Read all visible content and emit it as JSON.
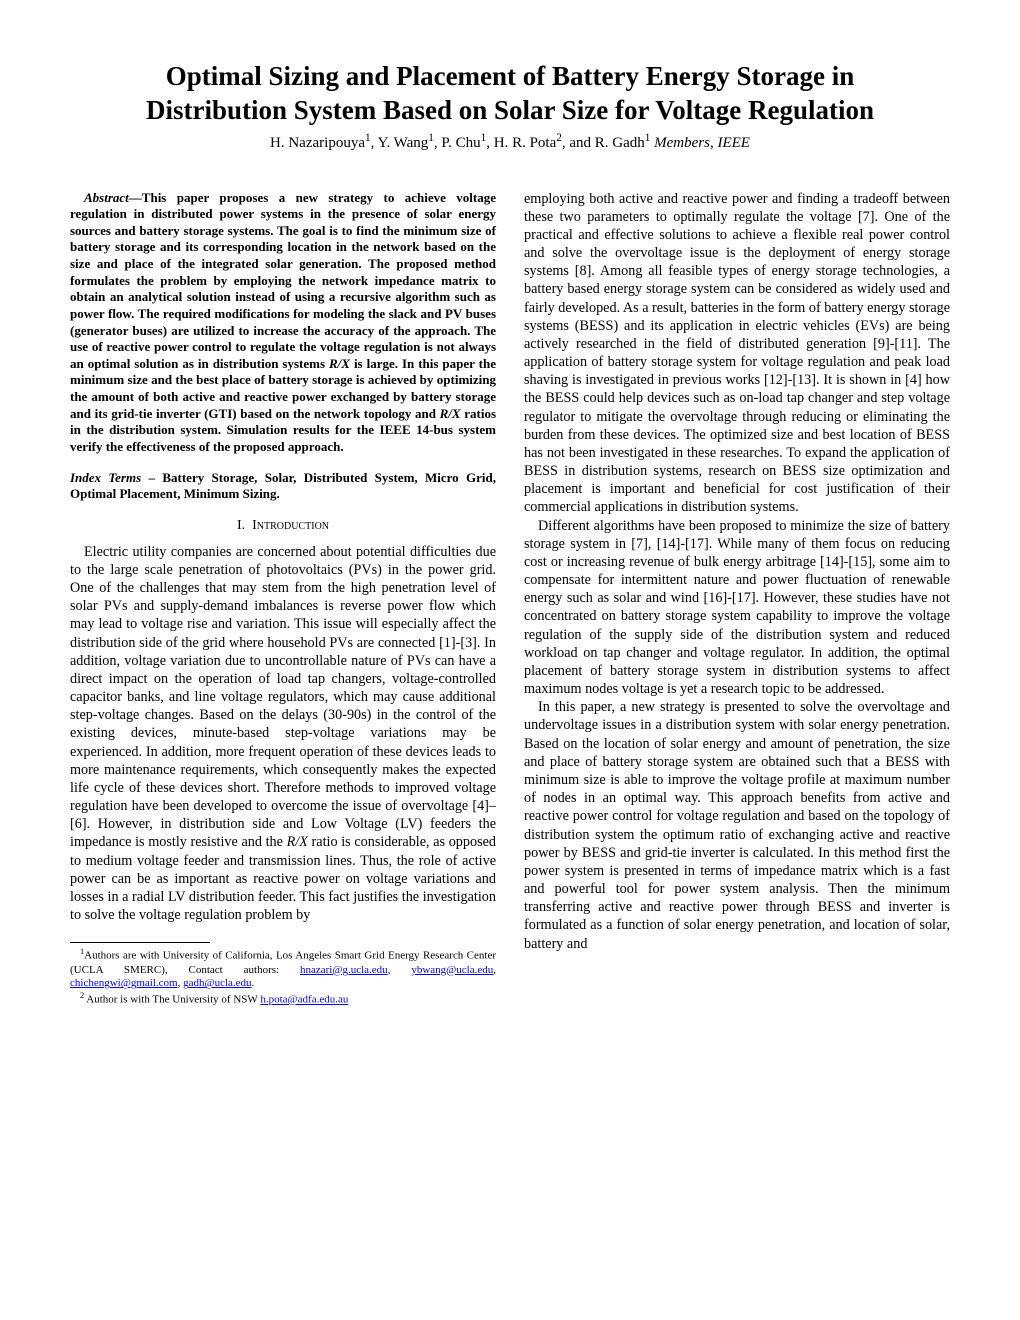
{
  "title_line1": "Optimal Sizing and Placement of Battery Energy Storage in",
  "title_line2": "Distribution System Based on Solar Size for Voltage Regulation",
  "authors_html": "H. Nazaripouya<sup>1</sup>, Y. Wang<sup>1</sup>, P. Chu<sup>1</sup>, H. R. Pota<sup>2</sup>, and R. Gadh<sup>1</sup> <span class=\"ital\">Members, IEEE</span>",
  "abstract_label": "Abstract",
  "abstract_text": "—This paper proposes a new strategy to achieve voltage regulation in distributed power systems in the presence of solar energy sources and battery storage systems. The goal is to find the minimum size of battery storage and its corresponding location in the network based on the size and place of the integrated solar generation. The proposed method formulates the problem by employing the network impedance matrix to obtain an analytical solution instead of using a recursive algorithm such as power flow. The required modifications for modeling the slack and PV buses (generator buses) are utilized to increase the accuracy of the approach. The use of reactive power control to regulate the voltage regulation is not always an optimal solution as in distribution systems <span class=\"ital\">R/X</span> is large. In this paper the minimum size and the best place of battery storage is achieved by optimizing the amount of both active and reactive power exchanged by battery storage and its grid-tie inverter (GTI) based on the network topology and <span class=\"ital\">R/X</span> ratios in the distribution system. Simulation results for the IEEE 14-bus system verify the effectiveness of the proposed approach.",
  "index_terms_label": "Index Terms",
  "index_terms_text": " – Battery Storage, Solar, Distributed System, Micro Grid, Optimal Placement, Minimum Sizing.",
  "section_num": "I.",
  "section_title": "Introduction",
  "left_para": "Electric utility companies are concerned about potential difficulties due to the large scale penetration of photovoltaics (PVs) in the power grid. One of the challenges that may stem from the high penetration level of solar PVs and supply-demand imbalances is reverse power flow which may lead to voltage rise and variation. This issue will especially affect the distribution side of the grid where household PVs are connected [1]-[3]. In addition, voltage variation due to uncontrollable nature of PVs can have a direct impact on the operation of load tap changers, voltage-controlled capacitor banks, and line voltage regulators, which may cause additional step-voltage changes. Based on the delays (30-90s) in the control of the existing devices, minute-based step-voltage variations may be experienced. In addition, more frequent operation of these devices leads to more maintenance requirements, which consequently makes the expected life cycle of these devices short.  Therefore methods to improved voltage regulation have been developed to overcome the issue of overvoltage [4]–[6]. However, in distribution side and Low Voltage (LV) feeders the impedance is mostly resistive and the <span class=\"ital\">R/X</span> ratio is considerable, as opposed to medium voltage feeder and transmission lines. Thus, the role of active power can be as important as reactive power on voltage variations and losses in a radial LV distribution feeder. This fact justifies the investigation to solve the voltage regulation problem by",
  "right_para1": "employing both active and reactive power and finding a tradeoff between these two parameters to optimally regulate the voltage [7]. One of the practical and effective solutions to achieve a flexible real power control and solve the overvoltage issue is the deployment of energy storage systems [8]. Among all feasible types of energy storage technologies, a battery based energy storage system can be considered as widely used and fairly developed. As a result, batteries in the form of battery energy storage systems (BESS) and its application in electric vehicles (EVs) are being actively researched in the field of distributed generation [9]-[11]. The application of battery storage system for voltage regulation and peak load shaving is investigated in previous works [12]-[13]. It is shown in [4] how the BESS could help devices such as on-load tap changer and step voltage regulator to mitigate the overvoltage through reducing or eliminating the burden from these devices. The optimized size and best location of BESS has not been investigated in these researches. To expand the application of BESS in distribution systems, research on BESS size optimization and placement is important and beneficial for cost justification of their commercial applications in distribution systems.",
  "right_para2": "Different algorithms have been proposed to minimize the size of battery storage system in [7], [14]-[17]. While many of them focus on reducing cost or increasing revenue of bulk energy arbitrage [14]-[15], some aim to compensate for intermittent nature and power fluctuation of renewable energy such as solar and wind [16]-[17].  However, these studies have not concentrated on battery storage system capability to improve the voltage regulation of the supply side of the distribution system and reduced workload on tap changer and voltage regulator. In addition, the optimal placement of battery storage system in distribution systems to affect maximum nodes voltage is yet a research topic to be addressed.",
  "right_para3": "In this paper, a new strategy is presented to solve the overvoltage and undervoltage issues in a distribution system with solar energy penetration. Based on the location of solar energy and amount of penetration, the size and place of battery storage system are obtained such that a BESS with minimum size is able to improve the voltage profile at maximum number of nodes in an optimal way. This approach benefits from active and reactive power control for voltage regulation and based on the topology of distribution system the optimum ratio of exchanging active and reactive power by BESS and grid-tie inverter is calculated.  In this method first the power system is presented in terms of impedance matrix which is a fast and powerful tool for power system analysis. Then the minimum transferring active and reactive power through BESS and inverter is formulated as a function of solar energy penetration, and location of solar, battery and",
  "footnote1_html": "<sup>1</sup>Authors are with University of California, Los Angeles Smart Grid Energy Research Center (UCLA SMERC), Contact authors: <a class=\"link\" href=\"#\">hnazari@g.ucla.edu</a>, <a class=\"link\" href=\"#\">ybwang@ucla.edu</a>, <a class=\"link\" href=\"#\">chichengwi@gmail.com</a>, <a class=\"link\" href=\"#\">gadh@ucla.edu</a>.",
  "footnote2_html": "<sup>2</sup> Author is with The University of NSW  <a class=\"link\" href=\"#\">h.pota@adfa.edu.au</a>"
}
